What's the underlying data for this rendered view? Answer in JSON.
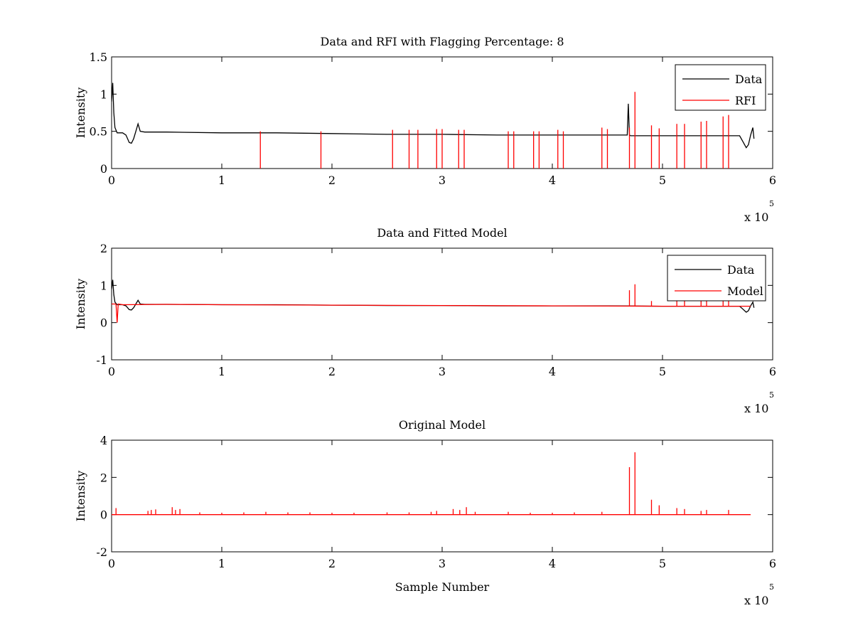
{
  "chart_data": [
    {
      "type": "line",
      "title": "Data and RFI with Flagging Percentage: 8",
      "xlabel": "",
      "ylabel": "Intensity",
      "xlim": [
        0,
        600000
      ],
      "ylim": [
        0,
        1.5
      ],
      "xticks": [
        0,
        100000,
        200000,
        300000,
        400000,
        500000,
        600000
      ],
      "xtick_labels": [
        "0",
        "1",
        "2",
        "3",
        "4",
        "5",
        "6"
      ],
      "yticks": [
        0,
        0.5,
        1,
        1.5
      ],
      "ytick_labels": [
        "0",
        "0.5",
        "1",
        "1.5"
      ],
      "x_exponent": {
        "prefix": "x 10",
        "power": "5"
      },
      "legend_position": "top-right",
      "series": [
        {
          "name": "Data",
          "color": "#000000",
          "x": [
            0,
            1000,
            2000,
            3000,
            5000,
            10000,
            13000,
            16000,
            18000,
            20000,
            22000,
            24000,
            26000,
            30000,
            50000,
            100000,
            150000,
            200000,
            250000,
            300000,
            350000,
            400000,
            450000,
            468000,
            469000,
            470000,
            471000,
            475000,
            500000,
            550000,
            570000,
            573000,
            576000,
            578000,
            580000,
            582000,
            583000
          ],
          "y": [
            0.9,
            1.15,
            0.75,
            0.55,
            0.48,
            0.48,
            0.45,
            0.35,
            0.34,
            0.4,
            0.5,
            0.6,
            0.5,
            0.49,
            0.49,
            0.48,
            0.48,
            0.47,
            0.46,
            0.46,
            0.45,
            0.45,
            0.45,
            0.45,
            0.87,
            0.45,
            0.44,
            0.44,
            0.44,
            0.44,
            0.44,
            0.36,
            0.28,
            0.32,
            0.45,
            0.55,
            0.4
          ]
        },
        {
          "name": "RFI",
          "color": "#ff0000",
          "spikes": {
            "x": [
              135000,
              190000,
              255000,
              270000,
              278000,
              295000,
              300000,
              315000,
              320000,
              360000,
              365000,
              383000,
              388000,
              405000,
              410000,
              445000,
              450000,
              470000,
              475000,
              490000,
              497000,
              513000,
              520000,
              535000,
              540000,
              555000,
              560000
            ],
            "y": [
              0.5,
              0.5,
              0.52,
              0.52,
              0.52,
              0.53,
              0.53,
              0.52,
              0.52,
              0.5,
              0.5,
              0.5,
              0.5,
              0.52,
              0.5,
              0.55,
              0.53,
              0.55,
              1.03,
              0.58,
              0.54,
              0.6,
              0.6,
              0.63,
              0.64,
              0.7,
              0.72
            ]
          }
        }
      ]
    },
    {
      "type": "line",
      "title": "Data and Fitted Model",
      "xlabel": "",
      "ylabel": "Intensity",
      "xlim": [
        0,
        600000
      ],
      "ylim": [
        -1,
        2
      ],
      "xticks": [
        0,
        100000,
        200000,
        300000,
        400000,
        500000,
        600000
      ],
      "xtick_labels": [
        "0",
        "1",
        "2",
        "3",
        "4",
        "5",
        "6"
      ],
      "yticks": [
        -1,
        0,
        1,
        2
      ],
      "ytick_labels": [
        "-1",
        "0",
        "1",
        "2"
      ],
      "x_exponent": {
        "prefix": "x 10",
        "power": "5"
      },
      "legend_position": "top-right",
      "series": [
        {
          "name": "Data",
          "color": "#000000",
          "x": [
            0,
            1000,
            2000,
            3000,
            5000,
            10000,
            13000,
            16000,
            18000,
            20000,
            22000,
            24000,
            26000,
            30000,
            50000,
            100000,
            150000,
            200000,
            250000,
            300000,
            350000,
            400000,
            450000,
            500000,
            550000,
            570000,
            573000,
            576000,
            578000,
            580000,
            582000,
            583000
          ],
          "y": [
            0.9,
            1.15,
            0.75,
            0.55,
            0.48,
            0.48,
            0.45,
            0.35,
            0.34,
            0.4,
            0.5,
            0.6,
            0.5,
            0.49,
            0.49,
            0.48,
            0.48,
            0.47,
            0.46,
            0.46,
            0.45,
            0.45,
            0.45,
            0.44,
            0.44,
            0.44,
            0.36,
            0.28,
            0.32,
            0.45,
            0.55,
            0.4
          ]
        },
        {
          "name": "Model",
          "color": "#ff0000",
          "x": [
            0,
            4000,
            5000,
            6000,
            10000,
            50000,
            100000,
            200000,
            300000,
            400000,
            500000,
            580000
          ],
          "y": [
            0.5,
            0.5,
            0.0,
            0.5,
            0.48,
            0.49,
            0.48,
            0.47,
            0.46,
            0.45,
            0.44,
            0.44
          ],
          "spikes": {
            "x": [
              470000,
              475000,
              490000,
              513000,
              520000,
              535000,
              540000,
              555000,
              560000
            ],
            "y": [
              0.87,
              1.03,
              0.58,
              0.6,
              0.6,
              0.63,
              0.64,
              0.7,
              0.72
            ]
          }
        }
      ]
    },
    {
      "type": "line",
      "title": "Original Model",
      "xlabel": "Sample Number",
      "ylabel": "Intensity",
      "xlim": [
        0,
        600000
      ],
      "ylim": [
        -2,
        4
      ],
      "xticks": [
        0,
        100000,
        200000,
        300000,
        400000,
        500000,
        600000
      ],
      "xtick_labels": [
        "0",
        "1",
        "2",
        "3",
        "4",
        "5",
        "6"
      ],
      "yticks": [
        -2,
        0,
        2,
        4
      ],
      "ytick_labels": [
        "-2",
        "0",
        "2",
        "4"
      ],
      "x_exponent": {
        "prefix": "x 10",
        "power": "5"
      },
      "series": [
        {
          "color": "#ff0000",
          "x": [
            0,
            580000
          ],
          "y": [
            0,
            0
          ],
          "spikes": {
            "x": [
              4000,
              33000,
              36000,
              40000,
              55000,
              58000,
              62000,
              80000,
              100000,
              120000,
              140000,
              160000,
              180000,
              200000,
              220000,
              250000,
              270000,
              290000,
              295000,
              310000,
              316000,
              322000,
              330000,
              360000,
              380000,
              400000,
              420000,
              445000,
              470000,
              475000,
              490000,
              497000,
              513000,
              520000,
              535000,
              540000,
              560000
            ],
            "y": [
              0.35,
              0.2,
              0.25,
              0.28,
              0.4,
              0.25,
              0.3,
              0.12,
              0.1,
              0.12,
              0.15,
              0.12,
              0.12,
              0.1,
              0.1,
              0.12,
              0.12,
              0.15,
              0.2,
              0.3,
              0.25,
              0.4,
              0.15,
              0.15,
              0.1,
              0.1,
              0.12,
              0.15,
              2.55,
              3.35,
              0.8,
              0.5,
              0.35,
              0.3,
              0.2,
              0.25,
              0.25
            ]
          }
        }
      ]
    }
  ]
}
